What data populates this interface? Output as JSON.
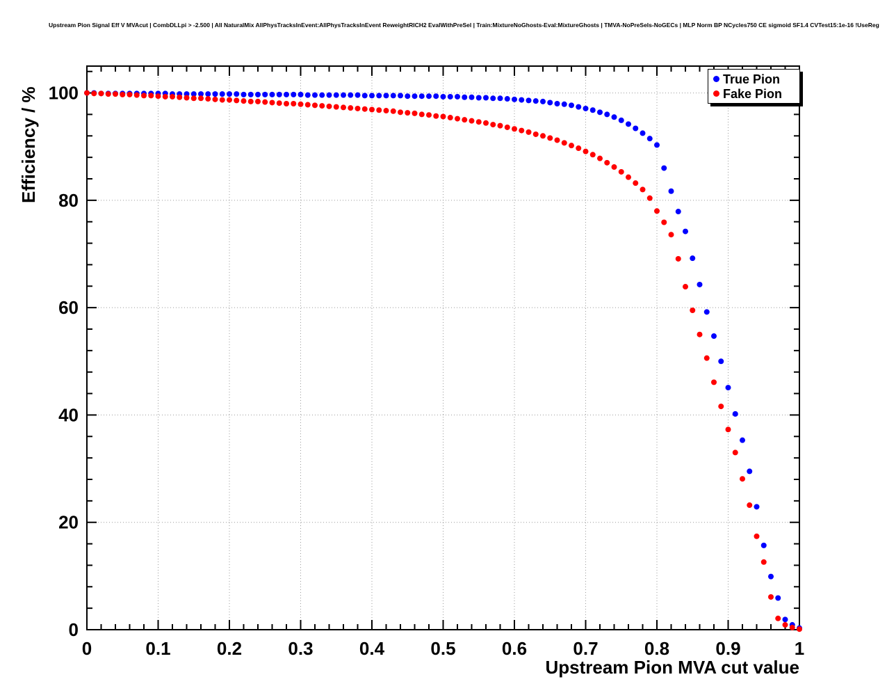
{
  "chart_data": {
    "type": "scatter",
    "title": "Upstream Pion Signal Eff V MVAcut | CombDLLpi > -2.500 | All NaturalMix AllPhysTracksInEvent:AllPhysTracksInEvent ReweightRICH2 EvalWithPreSel | Train:MixtureNoGhosts-Eval:MixtureGhosts | TMVA-NoPreSels-NoGECs | MLP Norm BP NCycles750 CE sigmoid SF1.4 CVTest15:1e-16 !UseReg",
    "xlabel": "Upstream Pion MVA cut value",
    "ylabel": "Efficiency / %",
    "xlim": [
      0,
      1
    ],
    "ylim": [
      0,
      105
    ],
    "xticks": [
      0,
      0.1,
      0.2,
      0.3,
      0.4,
      0.5,
      0.6,
      0.7,
      0.8,
      0.9,
      1
    ],
    "yticks": [
      0,
      20,
      40,
      60,
      80,
      100
    ],
    "grid": true,
    "legend_position": "top-right",
    "x": [
      0,
      0.01,
      0.02,
      0.03,
      0.04,
      0.05,
      0.06,
      0.07,
      0.08,
      0.09,
      0.1,
      0.11,
      0.12,
      0.13,
      0.14,
      0.15,
      0.16,
      0.17,
      0.18,
      0.19,
      0.2,
      0.21,
      0.22,
      0.23,
      0.24,
      0.25,
      0.26,
      0.27,
      0.28,
      0.29,
      0.3,
      0.31,
      0.32,
      0.33,
      0.34,
      0.35,
      0.36,
      0.37,
      0.38,
      0.39,
      0.4,
      0.41,
      0.42,
      0.43,
      0.44,
      0.45,
      0.46,
      0.47,
      0.48,
      0.49,
      0.5,
      0.51,
      0.52,
      0.53,
      0.54,
      0.55,
      0.56,
      0.57,
      0.58,
      0.59,
      0.6,
      0.61,
      0.62,
      0.63,
      0.64,
      0.65,
      0.66,
      0.67,
      0.68,
      0.69,
      0.7,
      0.71,
      0.72,
      0.73,
      0.74,
      0.75,
      0.76,
      0.77,
      0.78,
      0.79,
      0.8,
      0.81,
      0.82,
      0.83,
      0.84,
      0.85,
      0.86,
      0.87,
      0.88,
      0.89,
      0.9,
      0.91,
      0.92,
      0.93,
      0.94,
      0.95,
      0.96,
      0.97,
      0.98,
      0.99,
      1
    ],
    "series": [
      {
        "name": "True Pion",
        "color": "#0000ff",
        "values": [
          100,
          100,
          99.9,
          99.9,
          99.9,
          99.9,
          99.9,
          99.9,
          99.9,
          99.9,
          99.9,
          99.9,
          99.8,
          99.8,
          99.8,
          99.8,
          99.8,
          99.8,
          99.8,
          99.8,
          99.8,
          99.8,
          99.7,
          99.7,
          99.7,
          99.7,
          99.7,
          99.7,
          99.7,
          99.7,
          99.7,
          99.6,
          99.6,
          99.6,
          99.6,
          99.6,
          99.6,
          99.6,
          99.6,
          99.5,
          99.5,
          99.5,
          99.5,
          99.5,
          99.5,
          99.4,
          99.4,
          99.4,
          99.4,
          99.4,
          99.3,
          99.3,
          99.3,
          99.2,
          99.2,
          99.1,
          99.1,
          99,
          99,
          98.9,
          98.8,
          98.7,
          98.6,
          98.5,
          98.4,
          98.2,
          98,
          97.9,
          97.7,
          97.4,
          97.1,
          96.8,
          96.4,
          96,
          95.5,
          94.9,
          94.2,
          93.4,
          92.5,
          91.5,
          90.3,
          86,
          81.7,
          77.9,
          74.2,
          69.2,
          64.3,
          59.2,
          54.7,
          50,
          45.1,
          40.2,
          35.3,
          29.5,
          22.9,
          15.7,
          9.9,
          5.9,
          1.9,
          0.9,
          0.3
        ]
      },
      {
        "name": "Fake Pion",
        "color": "#ff0000",
        "values": [
          100,
          99.9,
          99.9,
          99.8,
          99.8,
          99.7,
          99.7,
          99.6,
          99.5,
          99.5,
          99.4,
          99.3,
          99.3,
          99.2,
          99.1,
          99,
          99,
          98.9,
          98.8,
          98.7,
          98.7,
          98.6,
          98.5,
          98.4,
          98.4,
          98.3,
          98.2,
          98.1,
          98,
          98,
          97.9,
          97.8,
          97.7,
          97.6,
          97.5,
          97.4,
          97.3,
          97.2,
          97.1,
          97,
          96.9,
          96.8,
          96.7,
          96.6,
          96.4,
          96.3,
          96.2,
          96,
          95.9,
          95.7,
          95.6,
          95.4,
          95.2,
          95,
          94.8,
          94.6,
          94.4,
          94.1,
          93.9,
          93.6,
          93.3,
          93,
          92.7,
          92.3,
          92,
          91.6,
          91.2,
          90.7,
          90.2,
          89.7,
          89.1,
          88.5,
          87.8,
          87,
          86.2,
          85.3,
          84.3,
          83.2,
          82,
          80.4,
          78,
          75.9,
          73.6,
          69.1,
          63.9,
          59.5,
          55,
          50.6,
          46.1,
          41.6,
          37.3,
          33,
          28.1,
          23.2,
          17.4,
          12.6,
          6.1,
          2.1,
          0.9,
          0.4,
          0.1
        ]
      }
    ]
  }
}
